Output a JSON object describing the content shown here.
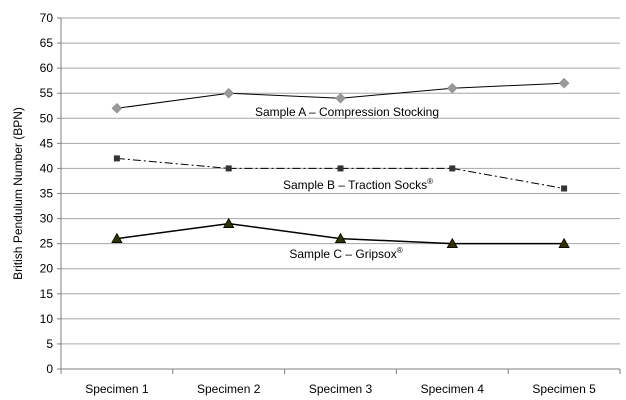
{
  "chart_data": {
    "type": "line",
    "title": "",
    "xlabel": "",
    "ylabel": "British Pendulum Number (BPN)",
    "categories": [
      "Specimen 1",
      "Specimen 2",
      "Specimen 3",
      "Specimen 4",
      "Specimen 5"
    ],
    "ylim": [
      0,
      70
    ],
    "ytick_step": 5,
    "grid": "horizontal",
    "legend": "none (inline series labels)",
    "series": [
      {
        "name": "Sample A – Compression Stocking",
        "label_text": "Sample A – Compression Stocking",
        "label_sup": "",
        "values": [
          52,
          55,
          54,
          56,
          57
        ],
        "marker": "diamond",
        "line_style": "solid",
        "color": "#999999",
        "line_color": "#000000"
      },
      {
        "name": "Sample B – Traction Socks®",
        "label_text": "Sample B – Traction Socks",
        "label_sup": "®",
        "values": [
          42,
          40,
          40,
          40,
          36
        ],
        "marker": "square",
        "line_style": "dash-dot",
        "color": "#333333",
        "line_color": "#000000"
      },
      {
        "name": "Sample C – Gripsox®",
        "label_text": "Sample C – Gripsox",
        "label_sup": "®",
        "values": [
          26,
          29,
          26,
          25,
          25
        ],
        "marker": "triangle",
        "line_style": "solid",
        "color": "#333300",
        "line_color": "#000000"
      }
    ]
  }
}
